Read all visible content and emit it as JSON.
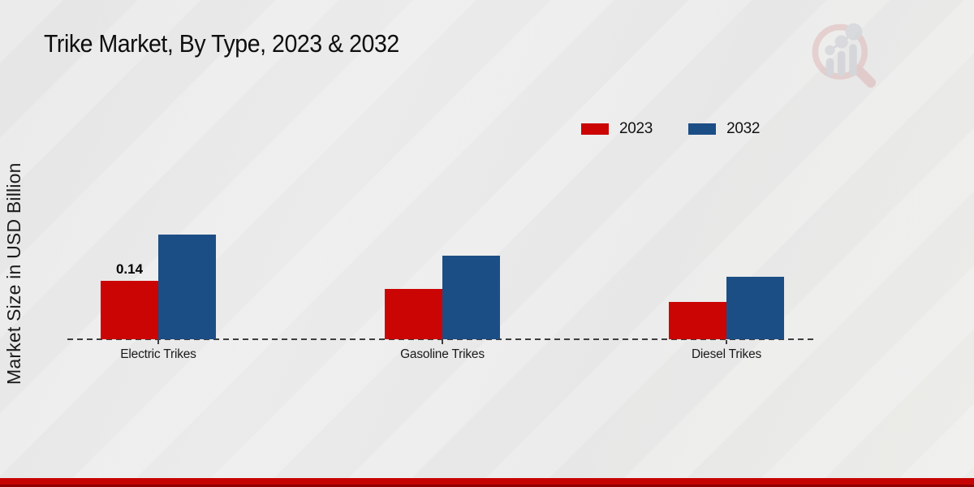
{
  "title": "Trike Market, By Type, 2023 & 2032",
  "ylabel": "Market Size in USD Billion",
  "logo_icon": "magnifier-bar-chart-watermark",
  "footer": {
    "bar_color": "#c70404"
  },
  "legend": {
    "items": [
      {
        "label": "2023",
        "color": "#cb0404"
      },
      {
        "label": "2032",
        "color": "#1c4e86"
      }
    ]
  },
  "chart_data": {
    "type": "bar",
    "title": "Trike Market, By Type, 2023 & 2032",
    "xlabel": "",
    "ylabel": "Market Size in USD Billion",
    "categories": [
      "Electric Trikes",
      "Gasoline Trikes",
      "Diesel Trikes"
    ],
    "series": [
      {
        "name": "2023",
        "color": "#cb0404",
        "values": [
          0.14,
          0.12,
          0.09
        ]
      },
      {
        "name": "2032",
        "color": "#1c4e86",
        "values": [
          0.25,
          0.2,
          0.15
        ]
      }
    ],
    "ylim": [
      0,
      0.3
    ],
    "grid": false,
    "legend_position": "top-right",
    "baseline_style": "dashed",
    "annotations": [
      {
        "category": "Electric Trikes",
        "series": "2023",
        "text": "0.14"
      }
    ]
  }
}
